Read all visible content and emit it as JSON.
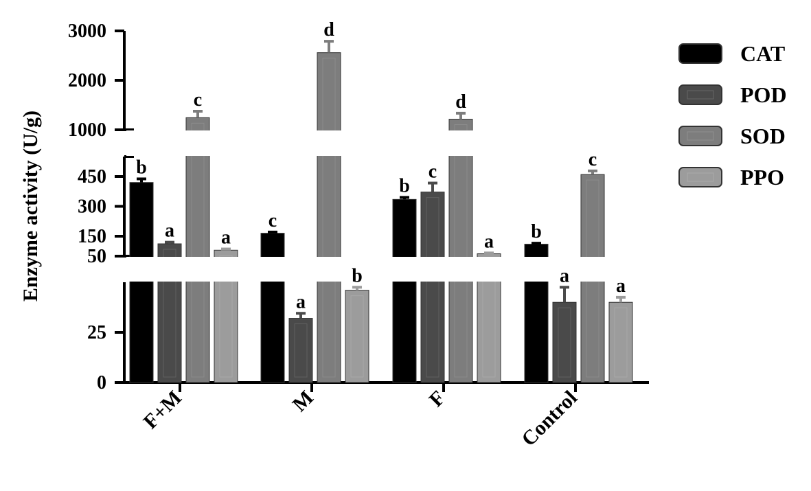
{
  "chart_data": {
    "type": "bar",
    "ylabel": "Enzyme activity (U/g)",
    "categories": [
      "F+M",
      "M",
      "F",
      "Control"
    ],
    "y_axis_segments": [
      {
        "range": [
          0,
          50
        ],
        "ticks": [
          0,
          25,
          50
        ]
      },
      {
        "range": [
          50,
          550
        ],
        "ticks": [
          150,
          300,
          450
        ]
      },
      {
        "range": [
          1000,
          3000
        ],
        "ticks": [
          1000,
          2000,
          3000
        ]
      }
    ],
    "series": [
      {
        "name": "CAT",
        "color": "#000000",
        "values": [
          420,
          165,
          335,
          110
        ],
        "errors": [
          18,
          6,
          10,
          5
        ],
        "letters": [
          "b",
          "c",
          "b",
          "b"
        ]
      },
      {
        "name": "POD",
        "color": "#4a4a4a",
        "values": [
          112,
          32,
          372,
          40
        ],
        "errors": [
          8,
          2.5,
          45,
          7.5
        ],
        "letters": [
          "a",
          "a",
          "c",
          "a"
        ]
      },
      {
        "name": "SOD",
        "color": "#7d7d7d",
        "values": [
          1245,
          2560,
          1215,
          460
        ],
        "errors": [
          130,
          230,
          120,
          18
        ],
        "letters": [
          "c",
          "d",
          "d",
          "c"
        ]
      },
      {
        "name": "PPO",
        "color": "#9c9c9c",
        "values": [
          80,
          46,
          62,
          40
        ],
        "errors": [
          6,
          1.5,
          4,
          2.5
        ],
        "letters": [
          "a",
          "b",
          "a",
          "a"
        ]
      }
    ],
    "legend_position": "right",
    "grid": false
  }
}
